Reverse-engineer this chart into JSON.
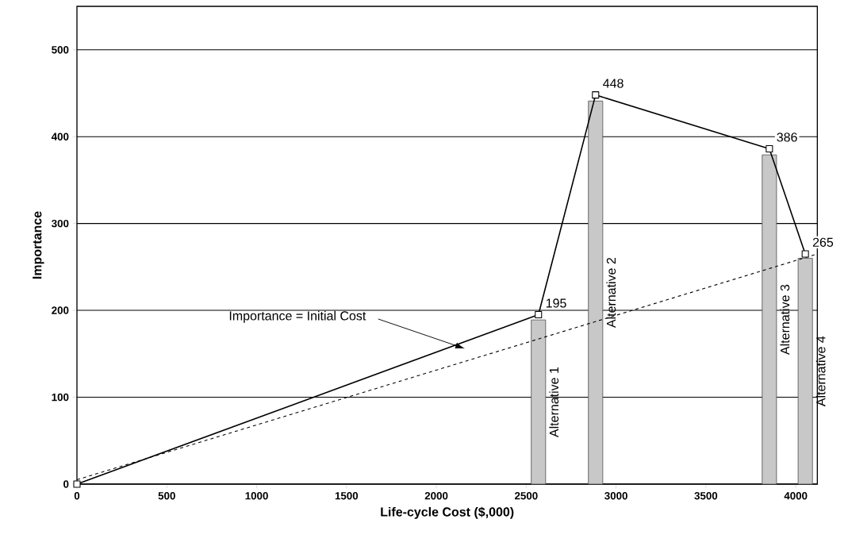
{
  "chart_data": {
    "type": "bar",
    "xlabel": "Life-cycle Cost ($,000)",
    "ylabel": "Importance",
    "xlim": [
      0,
      4120
    ],
    "ylim": [
      0,
      550
    ],
    "xticks": [
      0,
      500,
      1000,
      1500,
      2000,
      2500,
      3000,
      3500,
      4000
    ],
    "yticks": [
      0,
      100,
      200,
      300,
      400,
      500
    ],
    "grid": "y",
    "annotations": [
      "Importance = Initial Cost"
    ],
    "series": [
      {
        "name": "Alternative 1",
        "color": "#c8c8c8",
        "x": [
          2568
        ],
        "values": [
          189
        ]
      },
      {
        "name": "Alternative 2",
        "color": "#c8c8c8",
        "x": [
          2886
        ],
        "values": [
          441
        ]
      },
      {
        "name": "Alternative 3",
        "color": "#c8c8c8",
        "x": [
          3853
        ],
        "values": [
          379
        ]
      },
      {
        "name": "Alternative 4",
        "color": "#c8c8c8",
        "x": [
          4053
        ],
        "values": [
          260
        ]
      },
      {
        "type": "line",
        "color": "#000000",
        "x": [
          0,
          2568,
          2886,
          3853,
          4053
        ],
        "values": [
          0,
          195,
          448,
          386,
          265
        ],
        "marker": "square",
        "line_style": "solid",
        "value_labels": [
          null,
          "195",
          "448",
          "386",
          "265"
        ]
      },
      {
        "type": "line",
        "color": "#000000",
        "x": [
          0,
          4120
        ],
        "values": [
          5,
          265
        ],
        "marker": "none",
        "line_style": "dashed"
      }
    ]
  }
}
